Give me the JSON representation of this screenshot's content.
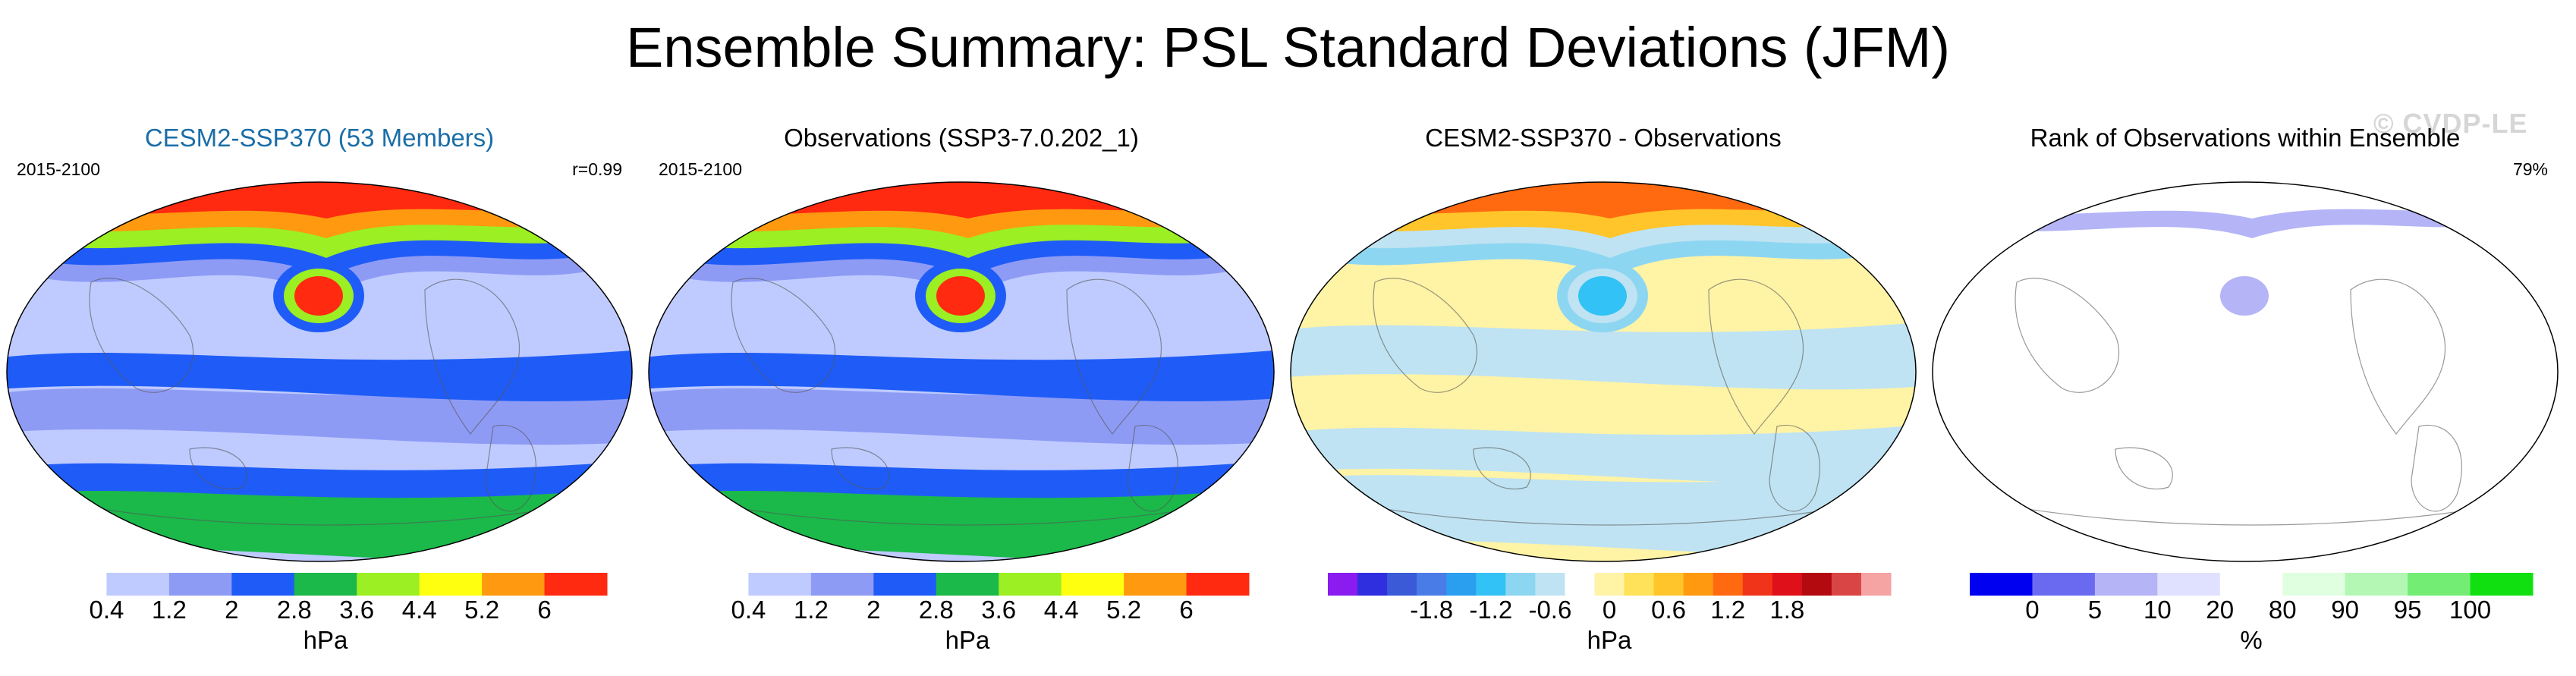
{
  "page_title": "Ensemble Summary: PSL Standard Deviations (JFM)",
  "watermark": "© CVDP-LE",
  "chart_data": [
    {
      "type": "heatmap",
      "title": "CESM2-SSP370 (53 Members)",
      "title_color": "#1a6ea8",
      "period": "2015-2100",
      "stat": "r=0.99",
      "colorbar": {
        "colors": [
          "#ffffff",
          "#bfcbff",
          "#8e9bf5",
          "#1f5cf7",
          "#1bb84a",
          "#9bef22",
          "#ffff10",
          "#ff9a10",
          "#ff2a10"
        ],
        "ticks": [
          "0.4",
          "1.2",
          "2",
          "2.8",
          "3.6",
          "4.4",
          "5.2",
          "6"
        ],
        "unit": "hPa"
      },
      "regions": {
        "background": 1,
        "bands": [
          [
            2,
            0.6,
            0.05
          ],
          [
            3,
            0.5,
            0.04
          ],
          [
            3,
            0.8,
            0.06
          ],
          [
            4,
            0.88,
            0.07
          ]
        ],
        "north": [
          8,
          7,
          5,
          3,
          2
        ],
        "hotspot": 8
      }
    },
    {
      "type": "heatmap",
      "title": "Observations (SSP3-7.0.202_1)",
      "title_color": "#000000",
      "period": "2015-2100",
      "stat": "",
      "colorbar": {
        "colors": [
          "#ffffff",
          "#bfcbff",
          "#8e9bf5",
          "#1f5cf7",
          "#1bb84a",
          "#9bef22",
          "#ffff10",
          "#ff9a10",
          "#ff2a10"
        ],
        "ticks": [
          "0.4",
          "1.2",
          "2",
          "2.8",
          "3.6",
          "4.4",
          "5.2",
          "6"
        ],
        "unit": "hPa"
      },
      "regions": {
        "background": 1,
        "bands": [
          [
            2,
            0.6,
            0.05
          ],
          [
            3,
            0.5,
            0.04
          ],
          [
            3,
            0.8,
            0.06
          ],
          [
            4,
            0.88,
            0.07
          ]
        ],
        "north": [
          8,
          7,
          5,
          3,
          2
        ],
        "hotspot": 8
      }
    },
    {
      "type": "heatmap",
      "title": "CESM2-SSP370 - Observations",
      "title_color": "#000000",
      "period": "",
      "stat": "",
      "colorbar": {
        "colors": [
          "#8a1cf0",
          "#2f2fe0",
          "#3a5ad8",
          "#4a7ce8",
          "#2a9fef",
          "#33c2f5",
          "#8dd6f2",
          "#bfe3f2",
          "#ffffff",
          "#fff3a6",
          "#ffe15a",
          "#ffc52a",
          "#ff9a10",
          "#ff6a10",
          "#f0341a",
          "#e0101a",
          "#b30a10",
          "#d94545",
          "#f5a3a3"
        ],
        "ticks": [
          "-1.8",
          "-1.2",
          "-0.6",
          "0",
          "0.6",
          "1.2",
          "1.8"
        ],
        "unit": "hPa"
      },
      "regions": {
        "background": 9,
        "bands": [
          [
            7,
            0.45,
            0.06
          ],
          [
            7,
            0.7,
            0.05
          ],
          [
            7,
            0.85,
            0.08
          ]
        ],
        "north": [
          13,
          11,
          7,
          6,
          9
        ],
        "hotspot": 5
      }
    },
    {
      "type": "heatmap",
      "title": "Rank of Observations within Ensemble",
      "title_color": "#000000",
      "period": "",
      "stat": "79%",
      "colorbar": {
        "colors": [
          "#0000f0",
          "#6a6af0",
          "#b4b4f7",
          "#e0e0ff",
          "#ffffff",
          "#e0ffe0",
          "#b4f7b4",
          "#74ed74",
          "#10e010"
        ],
        "ticks": [
          "0",
          "5",
          "10",
          "20",
          "80",
          "90",
          "95",
          "100"
        ],
        "unit": "%"
      },
      "regions": {
        "background": 4,
        "bands": [],
        "north": [
          4,
          2,
          4,
          4,
          4
        ],
        "hotspot": 2
      }
    }
  ]
}
